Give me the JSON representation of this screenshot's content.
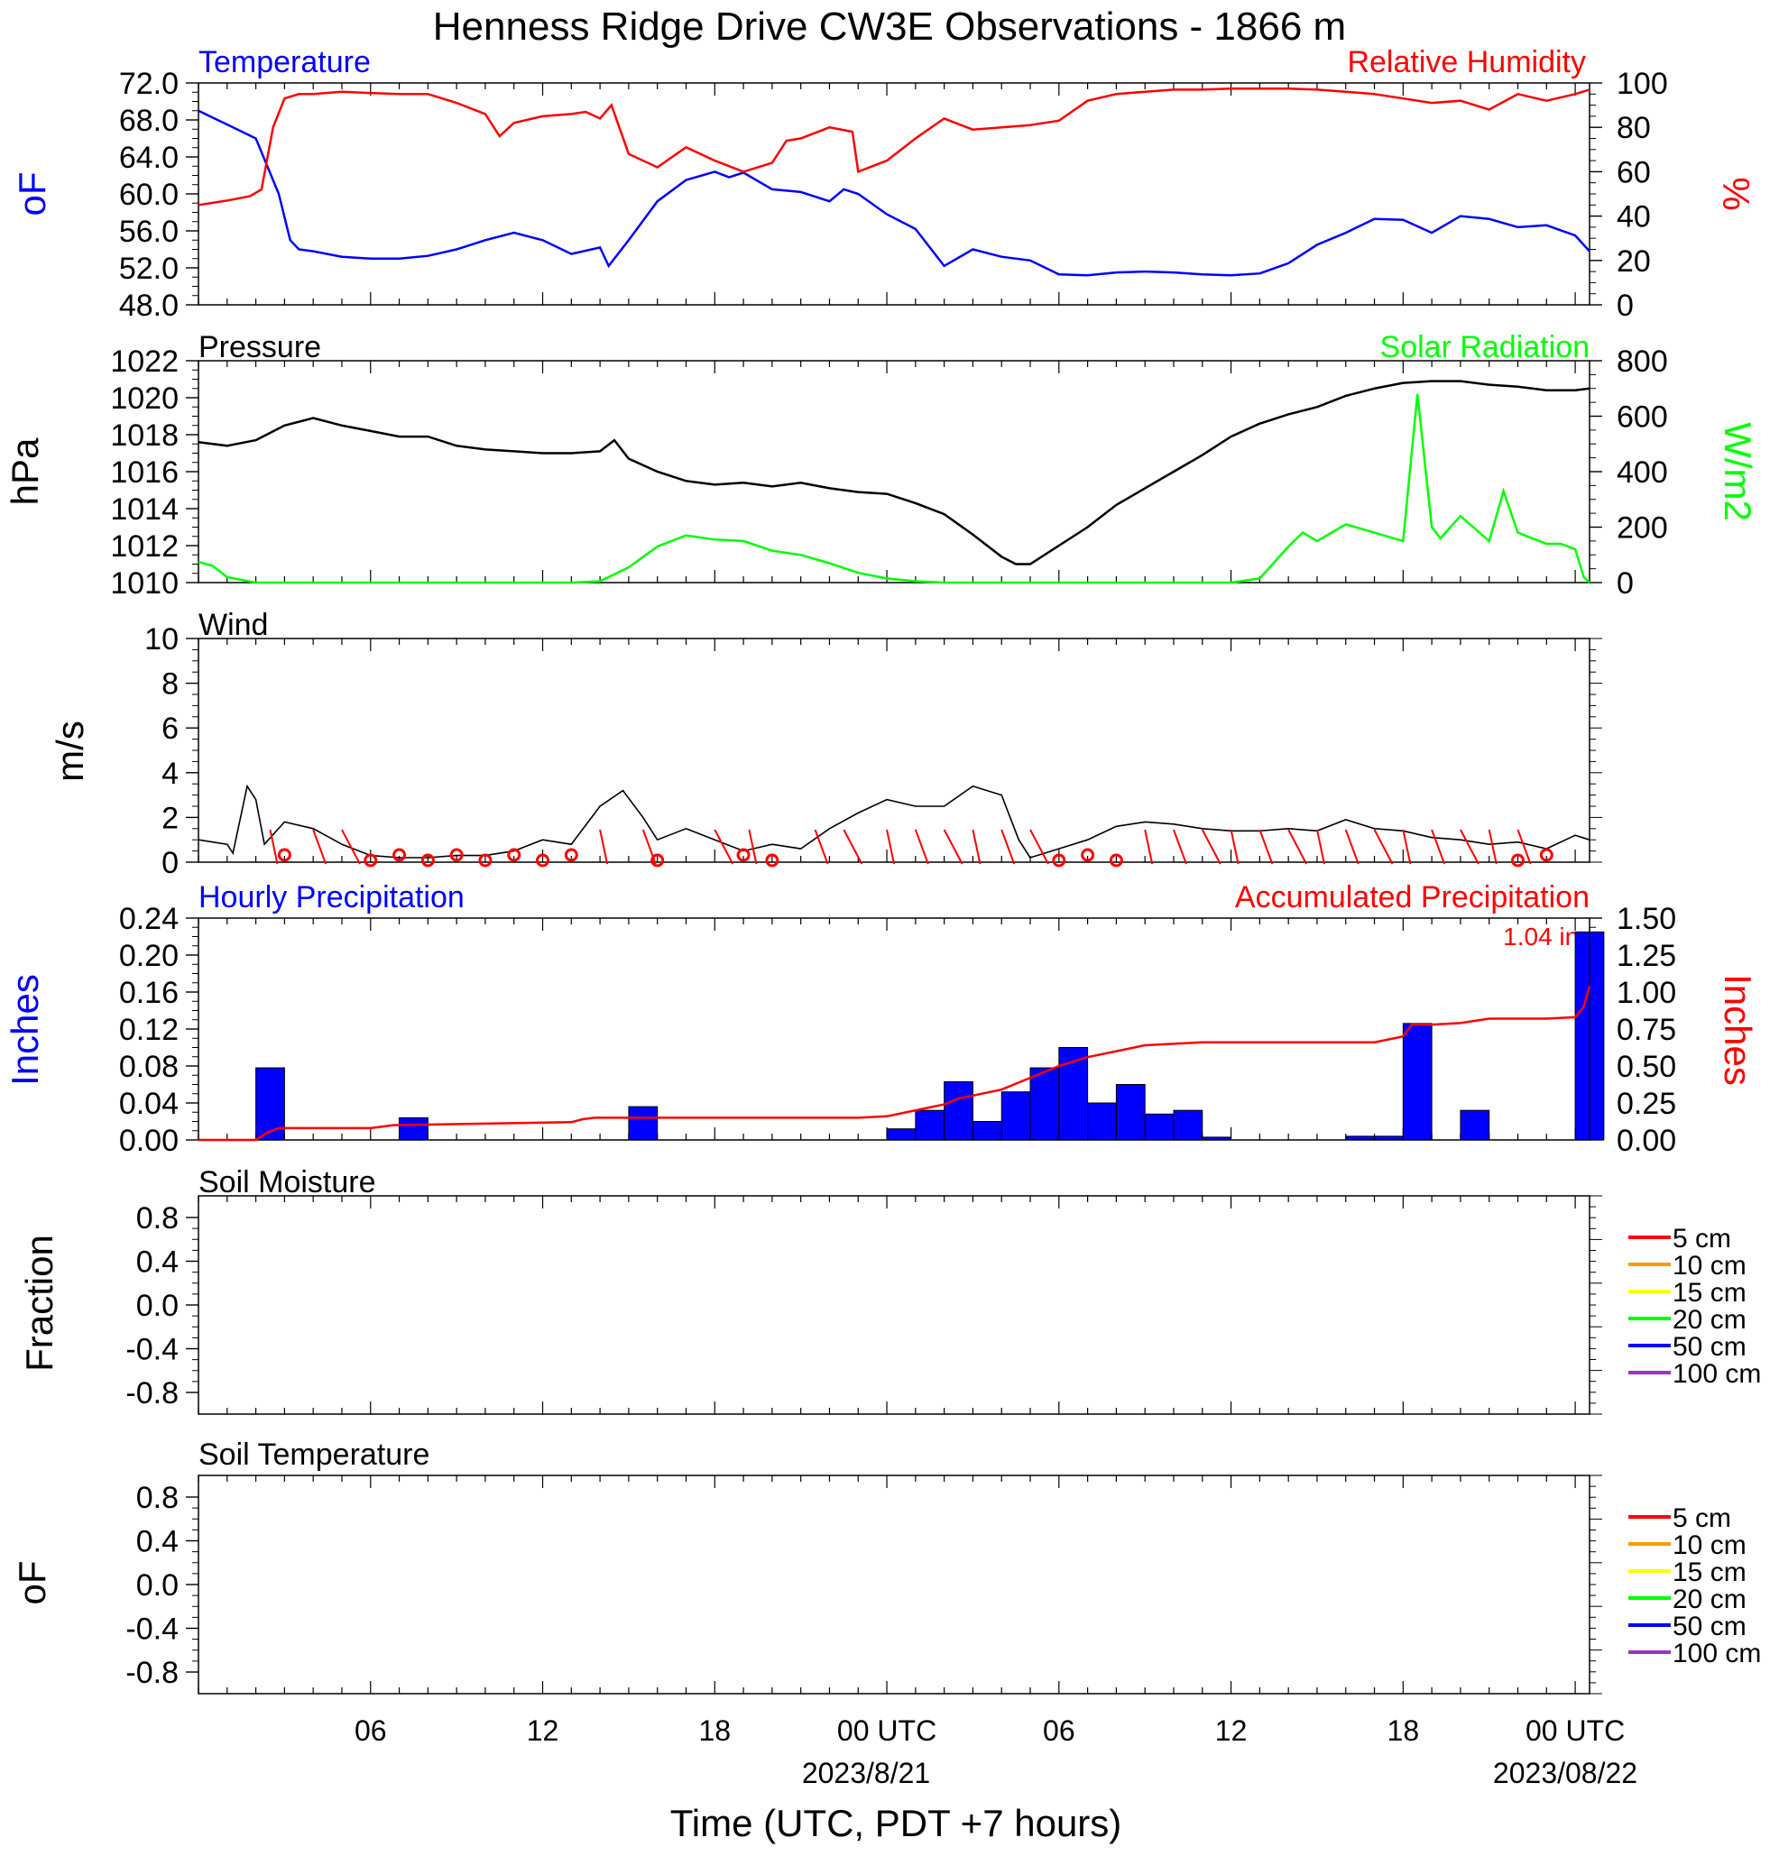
{
  "title": "Henness Ridge Drive CW3E Observations - 1866 m",
  "x_axis": {
    "label": "Time (UTC, PDT +7 hours)",
    "tick_labels": [
      "06",
      "12",
      "18",
      "00 UTC",
      "06",
      "12",
      "18",
      "00 UTC"
    ],
    "date_labels": [
      "2023/8/21",
      "2023/08/22"
    ]
  },
  "colors": {
    "temperature": "#0000ff",
    "humidity": "#ff0000",
    "pressure": "#000000",
    "solar": "#00ff00",
    "wind_speed": "#000000",
    "wind_barb": "#ff0000",
    "precip_bar": "#0000ff",
    "precip_accum": "#ff0000",
    "soil_levels": [
      "#ff0000",
      "#ff9900",
      "#ffff00",
      "#00ff00",
      "#0000ff",
      "#9933cc"
    ]
  },
  "panels": {
    "temp": {
      "left_title": "Temperature",
      "right_title": "Relative Humidity",
      "left_unit": "oF",
      "right_unit": "%",
      "left_ticks": [
        "72.0",
        "68.0",
        "64.0",
        "60.0",
        "56.0",
        "52.0",
        "48.0"
      ],
      "right_ticks": [
        "100",
        "80",
        "60",
        "40",
        "20",
        "0"
      ]
    },
    "pressure": {
      "left_title": "Pressure",
      "right_title": "Solar Radiation",
      "left_unit": "hPa",
      "right_unit": "W/m2",
      "left_ticks": [
        "1022",
        "1020",
        "1018",
        "1016",
        "1014",
        "1012",
        "1010"
      ],
      "right_ticks": [
        "800",
        "600",
        "400",
        "200",
        "0"
      ]
    },
    "wind": {
      "left_title": "Wind",
      "left_unit": "m/s",
      "left_ticks": [
        "10",
        "8",
        "6",
        "4",
        "2",
        "0"
      ]
    },
    "precip": {
      "left_title": "Hourly Precipitation",
      "right_title": "Accumulated Precipitation",
      "total_label": "1.04 in.",
      "left_unit": "Inches",
      "right_unit": "Inches",
      "left_ticks": [
        "0.24",
        "0.20",
        "0.16",
        "0.12",
        "0.08",
        "0.04",
        "0.00"
      ],
      "right_ticks": [
        "1.50",
        "1.25",
        "1.00",
        "0.75",
        "0.50",
        "0.25",
        "0.00"
      ]
    },
    "soil_moisture": {
      "left_title": "Soil Moisture",
      "left_unit": "Fraction",
      "left_ticks": [
        "0.8",
        "0.4",
        "0.0",
        "-0.4",
        "-0.8"
      ],
      "legend": [
        "5 cm",
        "10 cm",
        "15 cm",
        "20 cm",
        "50 cm",
        "100 cm"
      ]
    },
    "soil_temp": {
      "left_title": "Soil Temperature",
      "left_unit": "oF",
      "left_ticks": [
        "0.8",
        "0.4",
        "0.0",
        "-0.4",
        "-0.8"
      ],
      "legend": [
        "5 cm",
        "10 cm",
        "15 cm",
        "20 cm",
        "50 cm",
        "100 cm"
      ]
    }
  },
  "chart_data": {
    "type": "line",
    "x_unit": "hours since 2023-08-20 00 UTC",
    "temperature_F": {
      "ylim": [
        48,
        72
      ],
      "x": [
        0,
        1,
        2,
        2.8,
        3.2,
        3.5,
        4,
        5,
        6,
        7,
        8,
        9,
        10,
        11,
        12,
        13,
        14,
        14.3,
        15,
        16,
        17,
        18,
        18.5,
        19,
        20,
        21,
        22,
        22.5,
        23,
        24,
        25,
        26,
        27,
        28,
        29,
        30,
        31,
        32,
        33,
        34,
        35,
        36,
        37,
        38,
        39,
        40,
        41,
        42,
        43,
        44,
        45,
        46,
        47,
        48,
        48.5
      ],
      "values": [
        69,
        67.5,
        66,
        60,
        55,
        54,
        53.8,
        53.2,
        53,
        53,
        53.3,
        54,
        55,
        55.8,
        55,
        53.5,
        54.2,
        52.2,
        55,
        59.2,
        61.5,
        62.4,
        61.8,
        62.3,
        60.5,
        60.2,
        59.2,
        60.5,
        60,
        57.8,
        56.2,
        52.2,
        54,
        53.2,
        52.8,
        51.3,
        51.2,
        51.5,
        51.6,
        51.5,
        51.3,
        51.2,
        51.4,
        52.5,
        54.5,
        55.8,
        57.3,
        57.2,
        55.8,
        57.6,
        57.3,
        56.4,
        56.6,
        55.5,
        53.8
      ]
    },
    "relative_humidity_pct": {
      "ylim": [
        0,
        100
      ],
      "x": [
        0,
        1,
        1.8,
        2.2,
        2.6,
        3,
        3.5,
        4,
        5,
        6,
        7,
        8,
        9,
        10,
        10.5,
        11,
        12,
        13,
        13.5,
        14,
        14.4,
        15,
        16,
        17,
        18,
        19,
        20,
        20.5,
        21,
        22,
        22.8,
        23,
        24,
        25,
        26,
        27,
        28,
        29,
        30,
        31,
        32,
        33,
        34,
        35,
        36,
        37,
        38,
        39,
        40,
        41,
        42,
        43,
        44,
        45,
        46,
        47,
        48,
        48.5
      ],
      "values": [
        45,
        47,
        49,
        52,
        80,
        93,
        95,
        95,
        96,
        95.5,
        95,
        95,
        91,
        86,
        76,
        82,
        85,
        86,
        87,
        84,
        90,
        68,
        62,
        71,
        65,
        60,
        64,
        74,
        75,
        80,
        78,
        60,
        65,
        75,
        84,
        79,
        80,
        81,
        83,
        92,
        95,
        96,
        97,
        97,
        97.5,
        97.5,
        97.5,
        97,
        96,
        95,
        93,
        91,
        92,
        88,
        95,
        92,
        95,
        97
      ]
    },
    "pressure_hPa": {
      "ylim": [
        1010,
        1022
      ],
      "x": [
        0,
        1,
        2,
        3,
        4,
        5,
        6,
        7,
        8,
        9,
        10,
        11,
        12,
        13,
        14,
        14.5,
        15,
        16,
        17,
        18,
        19,
        20,
        21,
        22,
        23,
        24,
        25,
        26,
        27,
        28,
        28.5,
        29,
        30,
        31,
        32,
        33,
        34,
        35,
        36,
        37,
        38,
        39,
        40,
        41,
        42,
        43,
        44,
        45,
        46,
        47,
        48,
        48.5
      ],
      "values": [
        1017.6,
        1017.4,
        1017.7,
        1018.5,
        1018.9,
        1018.5,
        1018.2,
        1017.9,
        1017.9,
        1017.4,
        1017.2,
        1017.1,
        1017.0,
        1017.0,
        1017.1,
        1017.7,
        1016.7,
        1016.0,
        1015.5,
        1015.3,
        1015.4,
        1015.2,
        1015.4,
        1015.1,
        1014.9,
        1014.8,
        1014.3,
        1013.7,
        1012.6,
        1011.4,
        1011.0,
        1011.0,
        1012.0,
        1013.0,
        1014.2,
        1015.1,
        1016.0,
        1016.9,
        1017.9,
        1018.6,
        1019.1,
        1019.5,
        1020.1,
        1020.5,
        1020.8,
        1020.9,
        1020.9,
        1020.7,
        1020.6,
        1020.4,
        1020.4,
        1020.5
      ]
    },
    "solar_radiation_Wm2": {
      "ylim": [
        0,
        800
      ],
      "x": [
        0,
        0.5,
        1,
        2,
        13,
        14,
        15,
        16,
        17,
        18,
        19,
        20,
        21,
        22,
        23,
        24,
        25,
        26,
        36,
        37,
        38,
        38.5,
        39,
        40,
        41,
        42,
        42.5,
        43,
        43.3,
        44,
        45,
        45.5,
        46,
        46.5,
        47,
        47.5,
        48,
        48.3,
        48.5
      ],
      "values": [
        75,
        60,
        20,
        0,
        0,
        5,
        55,
        130,
        170,
        155,
        150,
        115,
        100,
        70,
        35,
        15,
        5,
        0,
        0,
        15,
        130,
        180,
        150,
        210,
        180,
        150,
        680,
        200,
        160,
        240,
        150,
        330,
        180,
        160,
        140,
        140,
        120,
        20,
        0
      ]
    },
    "wind_speed_ms": {
      "ylim": [
        0,
        10
      ],
      "x": [
        0,
        1,
        1.2,
        1.7,
        2,
        2.3,
        3,
        4,
        5,
        6,
        7,
        8,
        9,
        10,
        11,
        12,
        13,
        14,
        14.8,
        15.5,
        16,
        17,
        18,
        19,
        20,
        21,
        22,
        23,
        24,
        25,
        26,
        27,
        28,
        28.6,
        29,
        30,
        31,
        32,
        33,
        34,
        35,
        36,
        37,
        38,
        39,
        40,
        41,
        42,
        43,
        44,
        45,
        46,
        47,
        48,
        48.5
      ],
      "values": [
        1,
        0.8,
        0.4,
        3.4,
        2.8,
        0.8,
        1.8,
        1.5,
        0.8,
        0.3,
        0.2,
        0.2,
        0.3,
        0.3,
        0.5,
        1.0,
        0.8,
        2.5,
        3.2,
        2.0,
        1.0,
        1.5,
        1.0,
        0.5,
        0.8,
        0.6,
        1.5,
        2.2,
        2.8,
        2.5,
        2.5,
        3.4,
        3.0,
        1.0,
        0.2,
        0.6,
        1.0,
        1.6,
        1.8,
        1.7,
        1.5,
        1.4,
        1.4,
        1.5,
        1.4,
        1.9,
        1.5,
        1.4,
        1.1,
        1.0,
        0.8,
        0.9,
        0.6,
        1.2,
        1.0
      ]
    },
    "wind_barbs_calm_hours": [
      3,
      6,
      7,
      8,
      9,
      10,
      11,
      12,
      13,
      16,
      19,
      20,
      30,
      31,
      32,
      46,
      47
    ],
    "wind_barbs_hours": [
      2.5,
      4,
      5,
      14,
      15.5,
      18,
      19.2,
      21.5,
      22.5,
      24,
      25,
      26,
      27,
      28,
      29,
      33,
      34,
      35,
      36,
      37,
      38,
      39,
      40,
      41,
      42,
      43,
      44,
      45,
      46
    ],
    "hourly_precip_in": {
      "ylim": [
        0,
        0.24
      ],
      "hours": [
        2,
        3,
        4,
        5,
        6,
        7,
        8,
        9,
        10,
        11,
        12,
        13,
        14,
        15,
        16,
        17,
        18,
        19,
        20,
        21,
        22,
        23,
        24,
        25,
        26,
        27,
        28,
        29,
        30,
        31,
        32,
        33,
        34,
        35,
        36,
        37,
        38,
        39,
        40,
        41,
        42,
        43,
        44,
        45,
        46,
        47,
        48
      ],
      "values": [
        0.078,
        0,
        0,
        0,
        0,
        0.024,
        0,
        0,
        0,
        0,
        0,
        0,
        0,
        0.036,
        0,
        0,
        0,
        0,
        0,
        0,
        0,
        0,
        0.012,
        0.032,
        0.063,
        0.02,
        0.052,
        0.078,
        0.1,
        0.04,
        0.06,
        0.028,
        0.032,
        0.003,
        0,
        0,
        0,
        0,
        0.004,
        0.004,
        0.126,
        0,
        0.032,
        0,
        0,
        0,
        0.225
      ]
    },
    "accumulated_precip_in": {
      "ylim": [
        0,
        1.5
      ],
      "x": [
        0,
        2,
        2.4,
        2.8,
        6,
        6.4,
        6.8,
        13,
        13.4,
        13.8,
        23,
        24,
        24.5,
        25,
        26,
        26.5,
        27,
        28,
        29,
        30,
        31,
        32,
        33,
        34,
        35,
        36,
        41,
        42,
        42.3,
        43,
        44,
        45,
        46,
        47,
        48,
        48.3,
        48.5
      ],
      "values": [
        0,
        0,
        0.05,
        0.08,
        0.08,
        0.09,
        0.1,
        0.12,
        0.14,
        0.15,
        0.15,
        0.16,
        0.18,
        0.2,
        0.24,
        0.28,
        0.3,
        0.34,
        0.42,
        0.5,
        0.56,
        0.6,
        0.64,
        0.65,
        0.66,
        0.66,
        0.66,
        0.7,
        0.78,
        0.78,
        0.79,
        0.82,
        0.82,
        0.82,
        0.83,
        0.9,
        1.04
      ]
    }
  }
}
